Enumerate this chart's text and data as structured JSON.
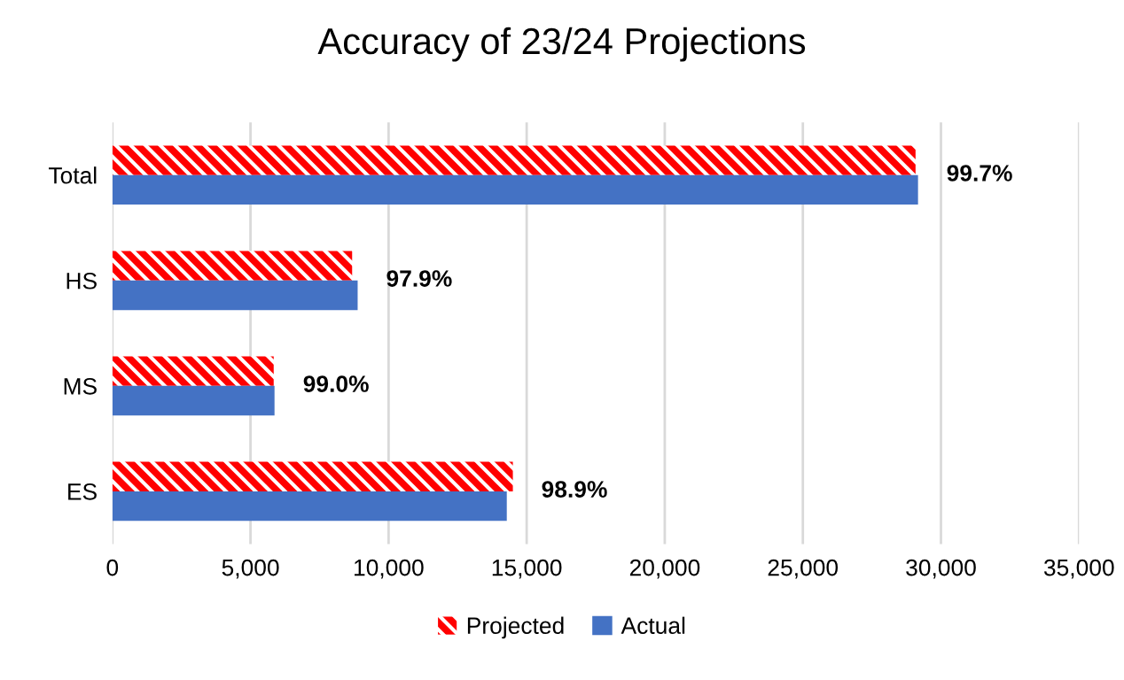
{
  "chart_data": {
    "type": "bar",
    "orientation": "horizontal",
    "title": "Accuracy of 23/24 Projections",
    "categories": [
      "Total",
      "HS",
      "MS",
      "ES"
    ],
    "series": [
      {
        "name": "Projected",
        "color": "#ff0000",
        "values": [
          29080,
          8680,
          5840,
          14500
        ]
      },
      {
        "name": "Actual",
        "color": "#4472c4",
        "values": [
          29170,
          8880,
          5870,
          14280
        ]
      }
    ],
    "xlim": [
      0,
      35000
    ],
    "xticks": [
      {
        "value": 0,
        "label": "0"
      },
      {
        "value": 5000,
        "label": "5,000"
      },
      {
        "value": 10000,
        "label": "10,000"
      },
      {
        "value": 15000,
        "label": "15,000"
      },
      {
        "value": 20000,
        "label": "20,000"
      },
      {
        "value": 25000,
        "label": "25,000"
      },
      {
        "value": 30000,
        "label": "30,000"
      },
      {
        "value": 35000,
        "label": "35,000"
      }
    ],
    "grid": "x",
    "legend": "bottom",
    "annotations": [
      "99.7%",
      "97.9%",
      "99.0%",
      "98.9%"
    ]
  }
}
